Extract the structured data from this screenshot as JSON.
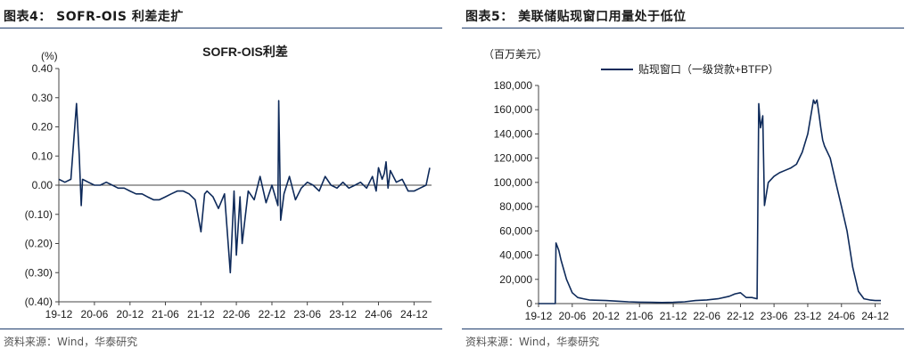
{
  "left_panel": {
    "figure_title": "图表4：  SOFR-OIS 利差走扩",
    "source": "资料来源：Wind，华泰研究"
  },
  "right_panel": {
    "figure_title": "图表5：  美联储贴现窗口用量处于低位",
    "source": "资料来源：Wind，华泰研究"
  },
  "colors": {
    "series": "#0e2a5a",
    "rule": "#1f3d6d",
    "text": "#1b1b1b"
  },
  "chart_data": [
    {
      "type": "line",
      "title": "SOFR-OIS利差",
      "unit_label": "(%)",
      "xlabel": "",
      "ylabel": "",
      "ylim": [
        -0.4,
        0.4
      ],
      "yticks": [
        0.4,
        0.3,
        0.2,
        0.1,
        0.0,
        -0.1,
        -0.2,
        -0.3,
        -0.4
      ],
      "ytick_labels": [
        "0.40",
        "0.30",
        "0.20",
        "0.10",
        "0.00",
        "(0.10)",
        "(0.20)",
        "(0.30)",
        "(0.40)"
      ],
      "xlim": [
        "2019-12",
        "2025-03"
      ],
      "xtick_labels": [
        "19-12",
        "20-06",
        "20-12",
        "21-06",
        "21-12",
        "22-06",
        "22-12",
        "23-06",
        "23-12",
        "24-06",
        "24-12"
      ],
      "xtick_dates": [
        "2019-12",
        "2020-06",
        "2020-12",
        "2021-06",
        "2021-12",
        "2022-06",
        "2022-12",
        "2023-06",
        "2023-12",
        "2024-06",
        "2024-12"
      ],
      "legend": "none",
      "series": [
        {
          "points": [
            [
              "2019-12",
              0.02
            ],
            [
              "2020-01",
              0.01
            ],
            [
              "2020-02",
              0.02
            ],
            [
              "2020-03",
              0.28
            ],
            [
              "2020-03-15",
              0.1
            ],
            [
              "2020-03-25",
              -0.07
            ],
            [
              "2020-04",
              0.02
            ],
            [
              "2020-05",
              0.01
            ],
            [
              "2020-06",
              0.0
            ],
            [
              "2020-07",
              0.0
            ],
            [
              "2020-08",
              0.01
            ],
            [
              "2020-09",
              0.0
            ],
            [
              "2020-10",
              -0.01
            ],
            [
              "2020-11",
              -0.01
            ],
            [
              "2020-12",
              -0.02
            ],
            [
              "2021-01",
              -0.03
            ],
            [
              "2021-02",
              -0.03
            ],
            [
              "2021-03",
              -0.04
            ],
            [
              "2021-04",
              -0.05
            ],
            [
              "2021-05",
              -0.05
            ],
            [
              "2021-06",
              -0.04
            ],
            [
              "2021-07",
              -0.03
            ],
            [
              "2021-08",
              -0.02
            ],
            [
              "2021-09",
              -0.02
            ],
            [
              "2021-10",
              -0.03
            ],
            [
              "2021-11",
              -0.05
            ],
            [
              "2021-12",
              -0.16
            ],
            [
              "2021-12-20",
              -0.03
            ],
            [
              "2022-01",
              -0.02
            ],
            [
              "2022-02",
              -0.04
            ],
            [
              "2022-03",
              -0.08
            ],
            [
              "2022-04",
              -0.03
            ],
            [
              "2022-05",
              -0.3
            ],
            [
              "2022-05-20",
              -0.02
            ],
            [
              "2022-06",
              -0.24
            ],
            [
              "2022-06-20",
              -0.04
            ],
            [
              "2022-07",
              -0.2
            ],
            [
              "2022-08",
              -0.02
            ],
            [
              "2022-09",
              -0.05
            ],
            [
              "2022-10",
              0.03
            ],
            [
              "2022-11",
              -0.06
            ],
            [
              "2022-12",
              0.0
            ],
            [
              "2023-01",
              -0.07
            ],
            [
              "2023-01-05",
              0.29
            ],
            [
              "2023-01-15",
              -0.12
            ],
            [
              "2023-02",
              -0.03
            ],
            [
              "2023-03",
              0.03
            ],
            [
              "2023-04",
              -0.05
            ],
            [
              "2023-05",
              -0.01
            ],
            [
              "2023-06",
              0.01
            ],
            [
              "2023-07",
              0.0
            ],
            [
              "2023-08",
              -0.02
            ],
            [
              "2023-09",
              0.03
            ],
            [
              "2023-10",
              0.0
            ],
            [
              "2023-11",
              -0.01
            ],
            [
              "2023-12",
              0.01
            ],
            [
              "2024-01",
              -0.01
            ],
            [
              "2024-02",
              0.0
            ],
            [
              "2024-03",
              0.01
            ],
            [
              "2024-04",
              -0.01
            ],
            [
              "2024-05",
              0.03
            ],
            [
              "2024-05-20",
              -0.02
            ],
            [
              "2024-06",
              0.06
            ],
            [
              "2024-06-20",
              0.02
            ],
            [
              "2024-07",
              0.04
            ],
            [
              "2024-07-10",
              0.08
            ],
            [
              "2024-07-20",
              -0.01
            ],
            [
              "2024-08",
              0.05
            ],
            [
              "2024-09",
              0.01
            ],
            [
              "2024-10",
              0.02
            ],
            [
              "2024-11",
              -0.02
            ],
            [
              "2024-12",
              -0.02
            ],
            [
              "2025-01",
              -0.01
            ],
            [
              "2025-02",
              0.0
            ],
            [
              "2025-02-20",
              0.06
            ]
          ]
        }
      ]
    },
    {
      "type": "line",
      "title": "",
      "unit_label": "（百万美元）",
      "xlabel": "",
      "ylabel": "",
      "ylim": [
        0,
        180000
      ],
      "yticks": [
        180000,
        160000,
        140000,
        120000,
        100000,
        80000,
        60000,
        40000,
        20000,
        0
      ],
      "ytick_labels": [
        "180,000",
        "160,000",
        "140,000",
        "120,000",
        "100,000",
        "80,000",
        "60,000",
        "40,000",
        "20,000",
        "0"
      ],
      "xlim": [
        "2019-12",
        "2025-01"
      ],
      "xtick_labels": [
        "19-12",
        "20-06",
        "20-12",
        "21-06",
        "21-12",
        "22-06",
        "22-12",
        "23-06",
        "23-12",
        "24-06",
        "24-12"
      ],
      "xtick_dates": [
        "2019-12",
        "2020-06",
        "2020-12",
        "2021-06",
        "2021-12",
        "2022-06",
        "2022-12",
        "2023-06",
        "2023-12",
        "2024-06",
        "2024-12"
      ],
      "legend": "top",
      "series": [
        {
          "name": "贴现窗口（一级贷款+BTFP）",
          "points": [
            [
              "2019-12",
              0
            ],
            [
              "2020-02",
              0
            ],
            [
              "2020-03",
              0
            ],
            [
              "2020-03-05",
              50000
            ],
            [
              "2020-03-20",
              44000
            ],
            [
              "2020-04",
              36000
            ],
            [
              "2020-05",
              20000
            ],
            [
              "2020-06",
              9000
            ],
            [
              "2020-07",
              5000
            ],
            [
              "2020-08",
              4000
            ],
            [
              "2020-09",
              3000
            ],
            [
              "2020-10",
              2800
            ],
            [
              "2020-12",
              2500
            ],
            [
              "2021-02",
              2000
            ],
            [
              "2021-04",
              1500
            ],
            [
              "2021-06",
              1200
            ],
            [
              "2021-08",
              1000
            ],
            [
              "2021-10",
              900
            ],
            [
              "2021-12",
              1000
            ],
            [
              "2022-02",
              1500
            ],
            [
              "2022-04",
              2500
            ],
            [
              "2022-06",
              3000
            ],
            [
              "2022-08",
              4000
            ],
            [
              "2022-10",
              6000
            ],
            [
              "2022-11",
              8000
            ],
            [
              "2022-12",
              9000
            ],
            [
              "2023-01",
              5000
            ],
            [
              "2023-02",
              5000
            ],
            [
              "2023-03",
              4000
            ],
            [
              "2023-03-10",
              165000
            ],
            [
              "2023-03-20",
              145000
            ],
            [
              "2023-04",
              155000
            ],
            [
              "2023-04-10",
              81000
            ],
            [
              "2023-05",
              100000
            ],
            [
              "2023-06",
              105000
            ],
            [
              "2023-07",
              108000
            ],
            [
              "2023-08",
              110000
            ],
            [
              "2023-09",
              112000
            ],
            [
              "2023-10",
              115000
            ],
            [
              "2023-11",
              125000
            ],
            [
              "2023-12",
              140000
            ],
            [
              "2024-01",
              168000
            ],
            [
              "2024-01-10",
              165000
            ],
            [
              "2024-01-20",
              168000
            ],
            [
              "2024-02",
              155000
            ],
            [
              "2024-02-10",
              145000
            ],
            [
              "2024-02-20",
              135000
            ],
            [
              "2024-03",
              130000
            ],
            [
              "2024-04",
              120000
            ],
            [
              "2024-05",
              100000
            ],
            [
              "2024-06",
              80000
            ],
            [
              "2024-07",
              60000
            ],
            [
              "2024-08",
              30000
            ],
            [
              "2024-09",
              10000
            ],
            [
              "2024-10",
              4000
            ],
            [
              "2024-11",
              3000
            ],
            [
              "2024-12",
              2500
            ],
            [
              "2025-01",
              2500
            ]
          ]
        }
      ]
    }
  ]
}
